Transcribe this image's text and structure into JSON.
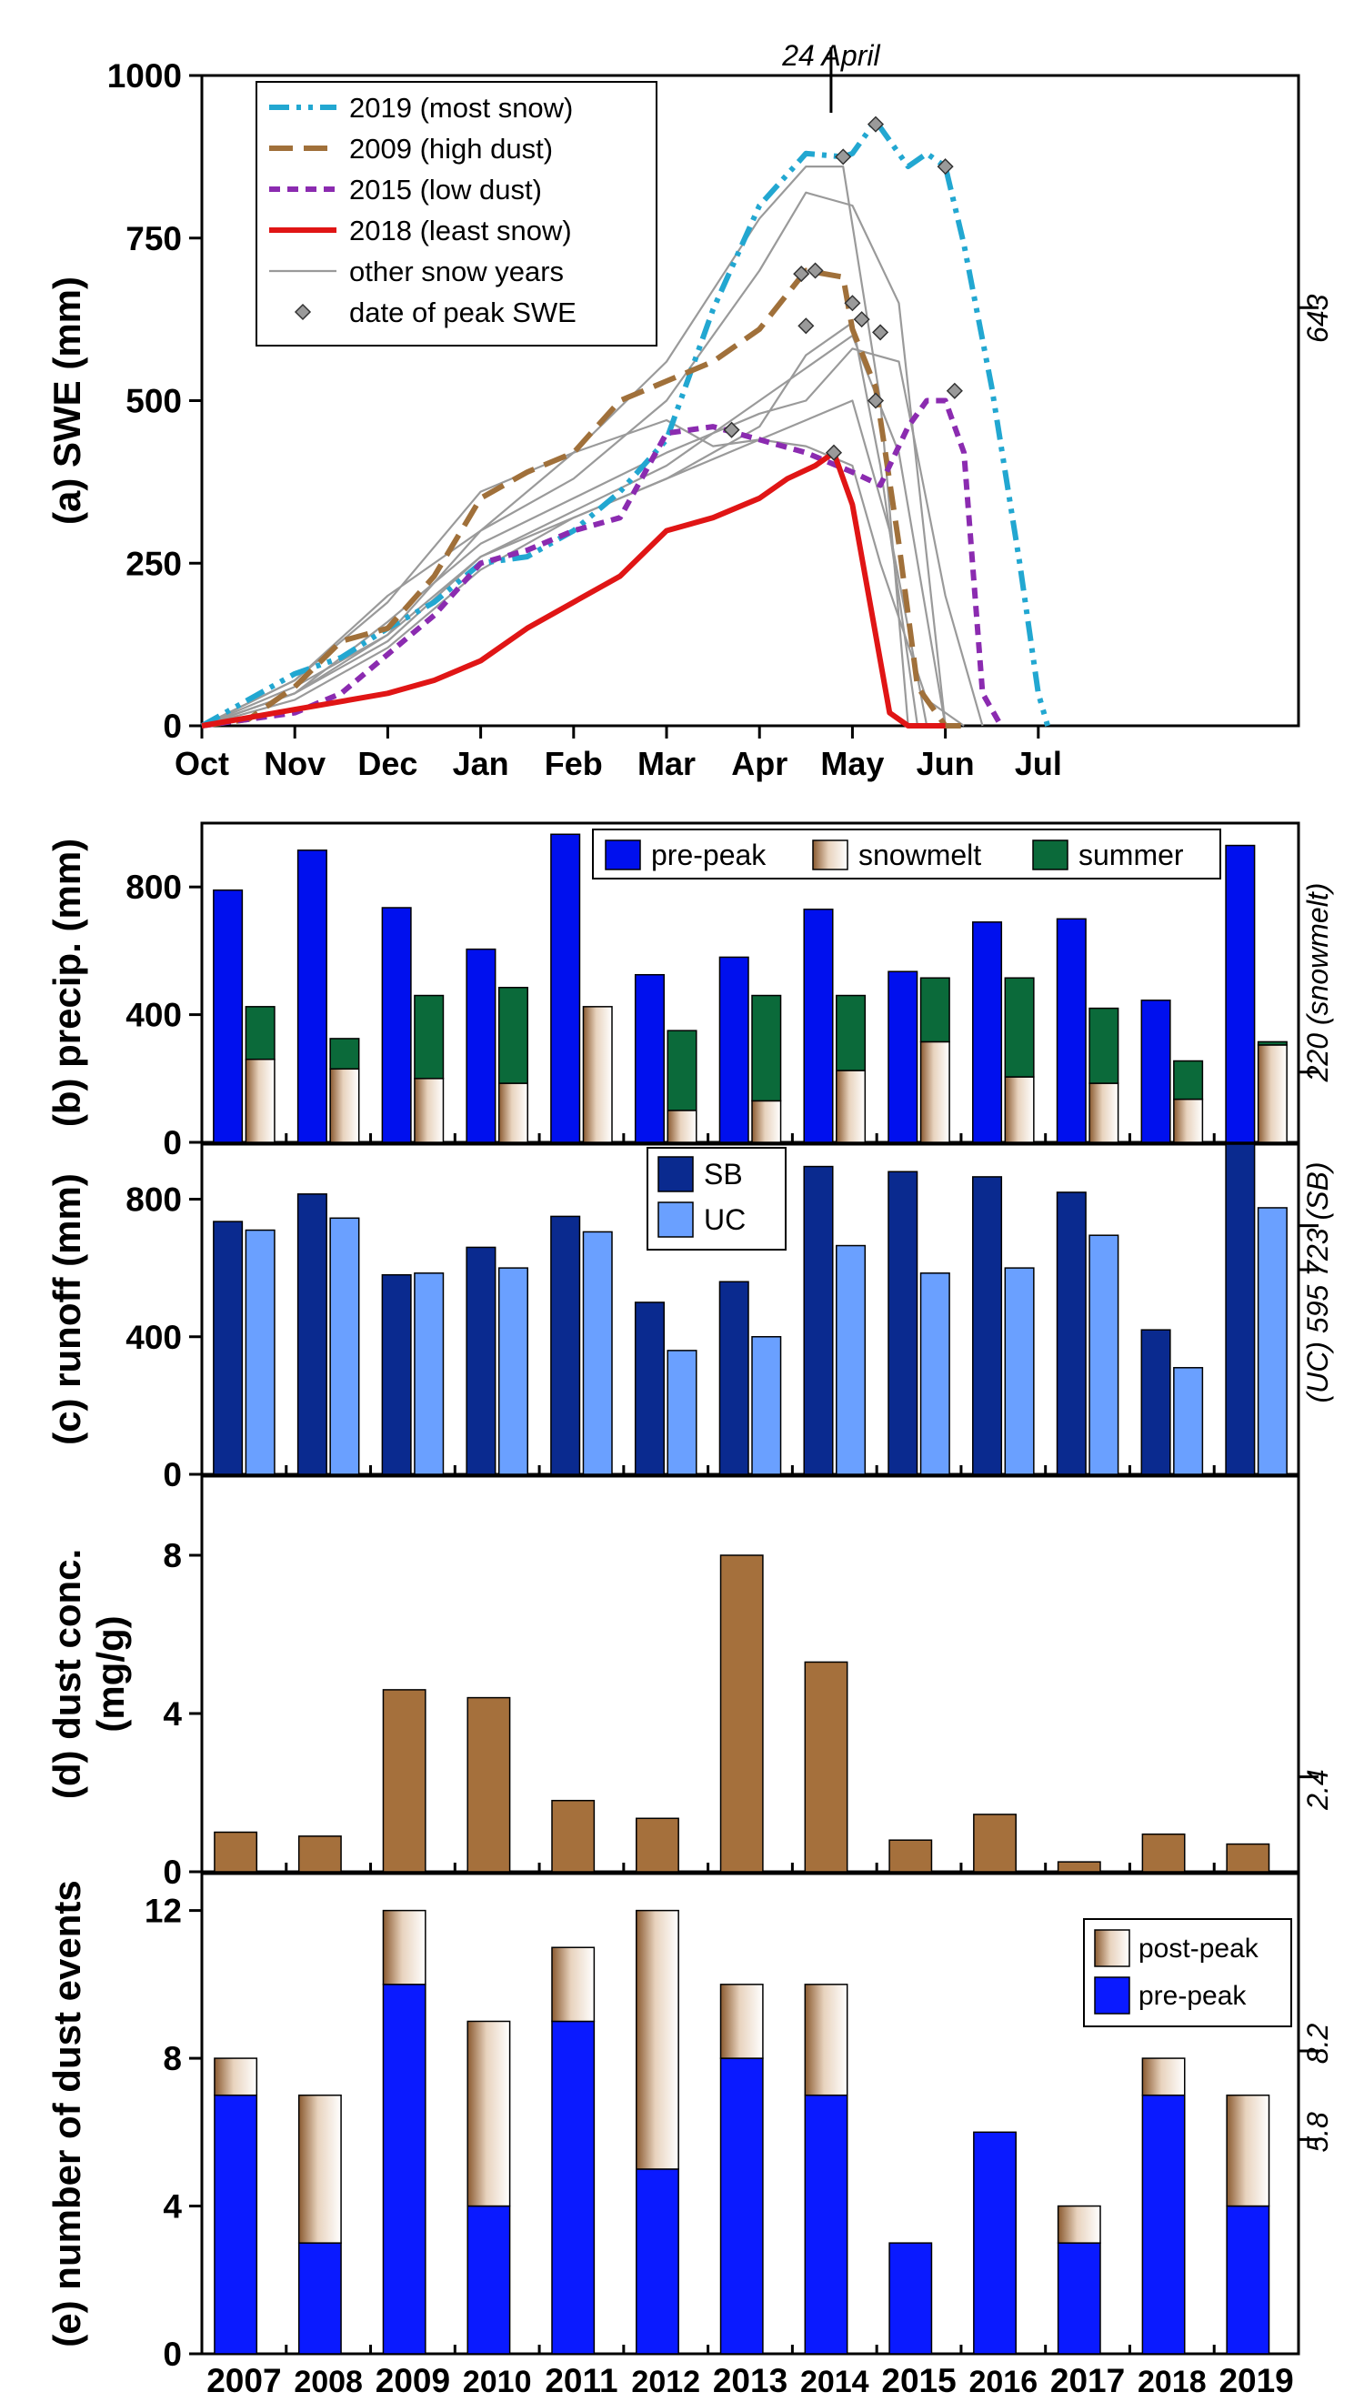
{
  "colors": {
    "y2019": "#22a7d1",
    "y2009": "#a0703a",
    "y2015": "#8b2bb0",
    "y2018": "#e01515",
    "other": "#9a9a9a",
    "marker": "#9a9a9a",
    "prepeak_b": "#0010ee",
    "summer": "#0b6a3a",
    "snowmelt": "#c9a98a",
    "sb": "#0a2a8f",
    "uc": "#6aa0ff",
    "dust": "#a5703c",
    "prepeak_e": "#0a1aff",
    "postpeak": "#c49b75"
  },
  "years": [
    "2007",
    "2008",
    "2009",
    "2010",
    "2011",
    "2012",
    "2013",
    "2014",
    "2015",
    "2016",
    "2017",
    "2018",
    "2019"
  ],
  "bold_years": [
    "2007",
    "2009",
    "2011",
    "2013",
    "2015",
    "2017",
    "2019"
  ],
  "chart_data": [
    {
      "panel": "a",
      "type": "line",
      "ylabel": "(a) SWE (mm)",
      "ylim": [
        0,
        1000
      ],
      "yticks": [
        0,
        250,
        500,
        750,
        1000
      ],
      "xticks": [
        "Oct",
        "Nov",
        "Dec",
        "Jan",
        "Feb",
        "Mar",
        "Apr",
        "May",
        "Jun",
        "Jul"
      ],
      "annotation_top": "24 April",
      "reference_label": "643",
      "reference_value": 643,
      "legend": [
        "2019 (most snow)",
        "2009 (high dust)",
        "2015 (low dust)",
        "2018 (least snow)",
        "other snow years",
        "date of peak SWE"
      ],
      "x_unit": "months since 1 October",
      "series": [
        {
          "name": "2019 (most snow)",
          "x": [
            0,
            0.5,
            1,
            1.5,
            2,
            2.5,
            3,
            3.5,
            4,
            4.5,
            5,
            5.5,
            6,
            6.5,
            6.9,
            7,
            7.25,
            7.6,
            7.8,
            8,
            8.2,
            8.5,
            8.8,
            9,
            9.1
          ],
          "y": [
            0,
            40,
            80,
            105,
            150,
            190,
            250,
            260,
            300,
            360,
            440,
            640,
            800,
            880,
            875,
            880,
            930,
            860,
            880,
            860,
            740,
            520,
            250,
            50,
            0
          ]
        },
        {
          "name": "2009 (high dust)",
          "x": [
            0,
            0.5,
            1,
            1.5,
            2,
            2.5,
            3,
            3.5,
            4,
            4.5,
            5,
            5.5,
            6,
            6.5,
            6.9,
            7,
            7.25,
            7.5,
            7.7,
            8,
            8.2
          ],
          "y": [
            0,
            10,
            60,
            130,
            150,
            230,
            350,
            390,
            420,
            500,
            530,
            560,
            610,
            700,
            690,
            610,
            520,
            280,
            60,
            0,
            0
          ]
        },
        {
          "name": "2015 (low dust)",
          "x": [
            0,
            1,
            1.5,
            2,
            2.5,
            3,
            3.5,
            4,
            4.5,
            5,
            5.5,
            6,
            6.5,
            7,
            7.3,
            7.6,
            7.8,
            8,
            8.2,
            8.4,
            8.6
          ],
          "y": [
            0,
            20,
            50,
            110,
            170,
            250,
            270,
            300,
            320,
            450,
            460,
            440,
            420,
            390,
            370,
            460,
            500,
            500,
            420,
            50,
            0
          ]
        },
        {
          "name": "2018 (least snow)",
          "x": [
            0,
            1,
            2,
            2.5,
            3,
            3.5,
            4,
            4.5,
            5,
            5.5,
            6,
            6.3,
            6.6,
            6.8,
            7,
            7.2,
            7.4,
            7.6,
            8
          ],
          "y": [
            0,
            25,
            50,
            70,
            100,
            150,
            190,
            230,
            300,
            320,
            350,
            380,
            400,
            420,
            340,
            180,
            20,
            0,
            0
          ]
        },
        {
          "name": "other snow years",
          "x": [
            0,
            1,
            2,
            3,
            4,
            5,
            6,
            6.5,
            7,
            7.5,
            8
          ],
          "y": [
            0,
            60,
            140,
            300,
            380,
            500,
            700,
            820,
            800,
            650,
            0
          ]
        },
        {
          "name": "other snow years",
          "x": [
            0,
            1,
            2,
            3,
            4,
            5,
            6,
            7,
            7.5,
            8
          ],
          "y": [
            0,
            50,
            140,
            260,
            330,
            400,
            500,
            600,
            420,
            0
          ]
        },
        {
          "name": "other snow years",
          "x": [
            0,
            1,
            2,
            3,
            4,
            5,
            5.5,
            6,
            6.5,
            7,
            7.3,
            7.8,
            8.2
          ],
          "y": [
            0,
            70,
            190,
            360,
            420,
            470,
            430,
            440,
            430,
            400,
            250,
            40,
            0
          ]
        },
        {
          "name": "other snow years",
          "x": [
            0,
            1,
            2,
            3,
            4,
            5,
            6,
            6.5,
            7,
            7.3,
            7.7
          ],
          "y": [
            0,
            40,
            120,
            240,
            320,
            380,
            460,
            570,
            620,
            400,
            0
          ]
        },
        {
          "name": "other snow years",
          "x": [
            0,
            1,
            2,
            3,
            4,
            5,
            6,
            6.5,
            7,
            7.5,
            8,
            8.4
          ],
          "y": [
            0,
            50,
            160,
            280,
            350,
            420,
            480,
            500,
            580,
            560,
            200,
            0
          ]
        },
        {
          "name": "other snow years",
          "x": [
            0,
            1,
            2,
            3,
            4,
            5,
            6,
            6.5,
            6.9,
            7.3,
            7.6
          ],
          "y": [
            0,
            70,
            200,
            300,
            420,
            560,
            780,
            860,
            860,
            500,
            0
          ]
        },
        {
          "name": "other snow years",
          "x": [
            0,
            1,
            2,
            3,
            4,
            5,
            6,
            6.5,
            7,
            7.4,
            7.8
          ],
          "y": [
            0,
            50,
            130,
            260,
            320,
            380,
            440,
            470,
            500,
            300,
            0
          ]
        }
      ],
      "peak_markers": [
        {
          "x": 6.9,
          "y": 875
        },
        {
          "x": 7.25,
          "y": 925
        },
        {
          "x": 8.0,
          "y": 860
        },
        {
          "x": 6.45,
          "y": 695
        },
        {
          "x": 6.5,
          "y": 615
        },
        {
          "x": 7.0,
          "y": 650
        },
        {
          "x": 7.1,
          "y": 625
        },
        {
          "x": 7.3,
          "y": 605
        },
        {
          "x": 7.25,
          "y": 500
        },
        {
          "x": 6.6,
          "y": 700
        },
        {
          "x": 5.7,
          "y": 455
        },
        {
          "x": 8.1,
          "y": 515
        },
        {
          "x": 6.8,
          "y": 420
        }
      ]
    },
    {
      "panel": "b",
      "type": "bar",
      "ylabel": "(b) precip. (mm)",
      "ylim": [
        0,
        1000
      ],
      "yticks": [
        0,
        400,
        800
      ],
      "reference_label": "220 (snowmelt)",
      "reference_value": 220,
      "legend": [
        "pre-peak",
        "snowmelt",
        "summer"
      ],
      "categories": [
        "2007",
        "2008",
        "2009",
        "2010",
        "2011",
        "2012",
        "2013",
        "2014",
        "2015",
        "2016",
        "2017",
        "2018",
        "2019"
      ],
      "series": [
        {
          "name": "pre-peak",
          "values": [
            790,
            915,
            735,
            605,
            965,
            525,
            580,
            730,
            535,
            690,
            700,
            445,
            930
          ]
        },
        {
          "name": "snowmelt",
          "values": [
            260,
            230,
            200,
            185,
            425,
            100,
            130,
            225,
            315,
            205,
            185,
            135,
            305
          ]
        },
        {
          "name": "summer",
          "values": [
            165,
            95,
            260,
            300,
            0,
            250,
            330,
            235,
            200,
            310,
            235,
            120,
            10
          ]
        }
      ]
    },
    {
      "panel": "c",
      "type": "bar",
      "ylabel": "(c) runoff (mm)",
      "ylim": [
        0,
        960
      ],
      "yticks": [
        0,
        400,
        800
      ],
      "reference_label": "(UC) 595  723 (SB)",
      "reference_values": {
        "UC": 595,
        "SB": 723
      },
      "legend": [
        "SB",
        "UC"
      ],
      "categories": [
        "2007",
        "2008",
        "2009",
        "2010",
        "2011",
        "2012",
        "2013",
        "2014",
        "2015",
        "2016",
        "2017",
        "2018",
        "2019"
      ],
      "series": [
        {
          "name": "SB",
          "values": [
            735,
            815,
            580,
            660,
            750,
            500,
            560,
            895,
            880,
            865,
            820,
            420,
            960
          ]
        },
        {
          "name": "UC",
          "values": [
            710,
            745,
            585,
            600,
            705,
            360,
            400,
            665,
            585,
            600,
            695,
            310,
            775
          ]
        }
      ]
    },
    {
      "panel": "d",
      "type": "bar",
      "ylabel": [
        "(d) dust conc.",
        "(mg/g)"
      ],
      "ylim": [
        0,
        10
      ],
      "yticks": [
        0,
        4,
        8
      ],
      "reference_label": "2.4",
      "reference_value": 2.4,
      "categories": [
        "2007",
        "2008",
        "2009",
        "2010",
        "2011",
        "2012",
        "2013",
        "2014",
        "2015",
        "2016",
        "2017",
        "2018",
        "2019"
      ],
      "series": [
        {
          "name": "dust conc.",
          "values": [
            1.0,
            0.9,
            4.6,
            4.4,
            1.8,
            1.35,
            8.0,
            5.3,
            0.8,
            1.45,
            0.25,
            0.95,
            0.7
          ]
        }
      ]
    },
    {
      "panel": "e",
      "type": "bar",
      "ylabel": "(e) number of dust events",
      "ylim": [
        0,
        13
      ],
      "yticks": [
        0,
        4,
        8,
        12
      ],
      "reference_labels": [
        "8.2",
        "5.8"
      ],
      "reference_values": [
        8.2,
        5.8
      ],
      "legend": [
        "post-peak",
        "pre-peak"
      ],
      "categories": [
        "2007",
        "2008",
        "2009",
        "2010",
        "2011",
        "2012",
        "2013",
        "2014",
        "2015",
        "2016",
        "2017",
        "2018",
        "2019"
      ],
      "series": [
        {
          "name": "pre-peak",
          "values": [
            7,
            3,
            10,
            4,
            9,
            5,
            8,
            7,
            3,
            6,
            3,
            7,
            4
          ]
        },
        {
          "name": "post-peak",
          "values": [
            1,
            4,
            2,
            5,
            2,
            7,
            2,
            3,
            0,
            0,
            1,
            1,
            3
          ]
        }
      ]
    }
  ]
}
